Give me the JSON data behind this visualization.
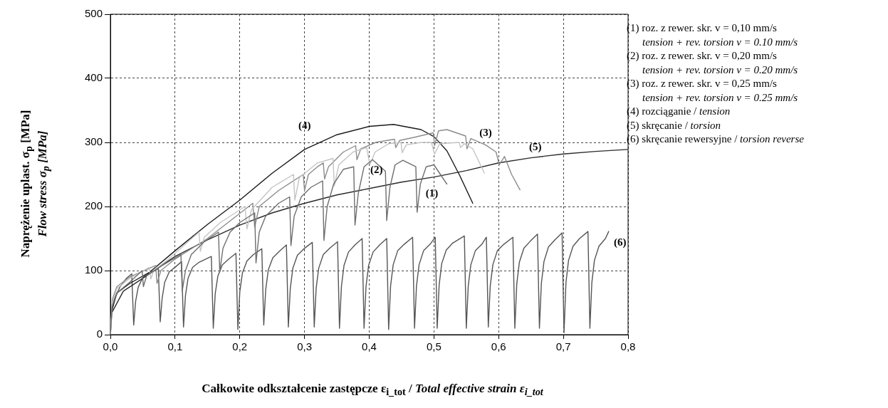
{
  "chart_data": {
    "type": "line",
    "xlabel": "Całkowite odkształcenie zastępcze ε$_{i_tot}$ / Total effective strain ε$_{i_tot}$",
    "ylabel": "Naprężenie uplast. σ$_{p}$ [MPa]\nFlow stress σ$_{p}$ [MPa]",
    "xlim": [
      0,
      0.8
    ],
    "xticks": [
      {
        "value": 0,
        "label": "0,0"
      },
      {
        "value": 0.1,
        "label": "0,1"
      },
      {
        "value": 0.2,
        "label": "0,2"
      },
      {
        "value": 0.3,
        "label": "0,3"
      },
      {
        "value": 0.4,
        "label": "0,4"
      },
      {
        "value": 0.5,
        "label": "0,5"
      },
      {
        "value": 0.6,
        "label": "0,6"
      },
      {
        "value": 0.7,
        "label": "0,7"
      },
      {
        "value": 0.8,
        "label": "0,8"
      }
    ],
    "ylim": [
      0,
      500
    ],
    "yticks": [
      0,
      100,
      200,
      300,
      400,
      500
    ],
    "grid": true,
    "marker": "none",
    "line_style": "solid",
    "series": [
      {
        "name": "(1)",
        "color": "#6e6e6e",
        "x": [
          0,
          0.003,
          0.01,
          0.03,
          0.049,
          0.051,
          0.056,
          0.08,
          0.109,
          0.111,
          0.116,
          0.125,
          0.145,
          0.167,
          0.169,
          0.174,
          0.185,
          0.2,
          0.223,
          0.225,
          0.23,
          0.24,
          0.26,
          0.277,
          0.279,
          0.284,
          0.295,
          0.31,
          0.328,
          0.33,
          0.335,
          0.345,
          0.36,
          0.376,
          0.378,
          0.383,
          0.392,
          0.405,
          0.425,
          0.427,
          0.432,
          0.44,
          0.452,
          0.472,
          0.474,
          0.479,
          0.488,
          0.5,
          0.51,
          0.52
        ],
        "values": [
          0,
          45,
          65,
          82,
          100,
          75,
          92,
          108,
          125,
          68,
          100,
          125,
          145,
          160,
          98,
          135,
          160,
          175,
          190,
          112,
          160,
          185,
          205,
          215,
          139,
          185,
          215,
          230,
          240,
          147,
          200,
          235,
          258,
          262,
          171,
          220,
          262,
          273,
          255,
          178,
          230,
          265,
          272,
          262,
          191,
          235,
          262,
          265,
          250,
          235
        ]
      },
      {
        "name": "(2)",
        "color": "#c4c4c4",
        "x": [
          0,
          0.003,
          0.01,
          0.03,
          0.06,
          0.0625,
          0.067,
          0.09,
          0.12,
          0.137,
          0.139,
          0.145,
          0.17,
          0.208,
          0.211,
          0.218,
          0.25,
          0.283,
          0.285,
          0.292,
          0.32,
          0.344,
          0.346,
          0.353,
          0.375,
          0.396,
          0.401,
          0.409,
          0.43,
          0.449,
          0.451,
          0.457,
          0.48,
          0.496,
          0.501,
          0.509,
          0.539,
          0.541,
          0.547,
          0.56,
          0.578
        ],
        "values": [
          0,
          50,
          72,
          88,
          105,
          87,
          100,
          118,
          145,
          160,
          130,
          152,
          175,
          200,
          165,
          195,
          230,
          250,
          210,
          245,
          268,
          275,
          232,
          265,
          285,
          292,
          265,
          285,
          298,
          300,
          284,
          296,
          300,
          300,
          282,
          298,
          300,
          292,
          298,
          290,
          252
        ]
      },
      {
        "name": "(3)",
        "color": "#8c8c8c",
        "x": [
          0,
          0.003,
          0.01,
          0.03,
          0.07,
          0.072,
          0.078,
          0.1,
          0.15,
          0.22,
          0.223,
          0.23,
          0.26,
          0.298,
          0.3,
          0.306,
          0.32,
          0.329,
          0.331,
          0.337,
          0.36,
          0.379,
          0.381,
          0.387,
          0.41,
          0.439,
          0.441,
          0.447,
          0.47,
          0.499,
          0.501,
          0.507,
          0.52,
          0.549,
          0.551,
          0.557,
          0.58,
          0.596,
          0.601,
          0.609,
          0.62,
          0.633
        ],
        "values": [
          0,
          55,
          75,
          90,
          108,
          80,
          100,
          118,
          150,
          205,
          168,
          200,
          225,
          250,
          225,
          250,
          262,
          268,
          243,
          262,
          285,
          295,
          273,
          290,
          300,
          305,
          292,
          303,
          308,
          315,
          295,
          318,
          320,
          310,
          290,
          306,
          296,
          285,
          265,
          278,
          250,
          226
        ]
      },
      {
        "name": "(4)",
        "color": "#1a1a1a",
        "x": [
          0,
          0.01,
          0.03,
          0.06,
          0.1,
          0.15,
          0.2,
          0.25,
          0.3,
          0.35,
          0.4,
          0.4375,
          0.48,
          0.5,
          0.52,
          0.54,
          0.56
        ],
        "values": [
          30,
          65,
          80,
          97,
          131,
          172,
          210,
          252,
          289,
          312,
          325,
          328,
          320,
          309,
          287,
          248,
          205
        ]
      },
      {
        "name": "(5)",
        "color": "#2a2a2a",
        "x": [
          0,
          0.02,
          0.05,
          0.1,
          0.15,
          0.2,
          0.25,
          0.3,
          0.35,
          0.4,
          0.45,
          0.5,
          0.55,
          0.6,
          0.65,
          0.7,
          0.75,
          0.8
        ],
        "values": [
          30,
          68,
          88,
          122,
          148,
          171,
          190,
          205,
          218,
          228,
          238,
          246,
          256,
          268,
          276,
          282,
          286,
          289
        ]
      },
      {
        "name": "(6)",
        "color": "#555555",
        "x": [
          0,
          0.002,
          0.006,
          0.015,
          0.025,
          0.033,
          0.036,
          0.039,
          0.043,
          0.05,
          0.06,
          0.074,
          0.077,
          0.08,
          0.084,
          0.091,
          0.101,
          0.11,
          0.113,
          0.116,
          0.12,
          0.127,
          0.137,
          0.156,
          0.159,
          0.162,
          0.166,
          0.173,
          0.183,
          0.194,
          0.197,
          0.2,
          0.204,
          0.211,
          0.221,
          0.234,
          0.237,
          0.24,
          0.244,
          0.251,
          0.261,
          0.272,
          0.275,
          0.278,
          0.282,
          0.289,
          0.299,
          0.312,
          0.315,
          0.318,
          0.322,
          0.329,
          0.339,
          0.351,
          0.354,
          0.357,
          0.361,
          0.368,
          0.378,
          0.389,
          0.392,
          0.395,
          0.399,
          0.406,
          0.416,
          0.427,
          0.43,
          0.433,
          0.437,
          0.444,
          0.454,
          0.467,
          0.47,
          0.473,
          0.477,
          0.484,
          0.494,
          0.502,
          0.505,
          0.508,
          0.512,
          0.519,
          0.529,
          0.547,
          0.55,
          0.553,
          0.557,
          0.564,
          0.574,
          0.581,
          0.584,
          0.587,
          0.591,
          0.598,
          0.608,
          0.622,
          0.625,
          0.628,
          0.632,
          0.639,
          0.649,
          0.66,
          0.663,
          0.666,
          0.67,
          0.677,
          0.687,
          0.698,
          0.701,
          0.704,
          0.708,
          0.715,
          0.725,
          0.738,
          0.741,
          0.744,
          0.748,
          0.755,
          0.765,
          0.77
        ],
        "values": [
          0,
          35,
          55,
          75,
          88,
          95,
          15,
          52,
          74,
          89,
          96,
          103,
          20,
          57,
          82,
          98,
          106,
          114,
          12,
          61,
          88,
          105,
          113,
          122,
          10,
          64,
          91,
          109,
          118,
          127,
          8,
          67,
          96,
          115,
          125,
          134,
          15,
          70,
          101,
          120,
          130,
          140,
          12,
          72,
          104,
          124,
          134,
          144,
          12,
          73,
          104,
          125,
          135,
          145,
          10,
          75,
          108,
          129,
          140,
          150,
          10,
          75,
          108,
          129,
          140,
          150,
          8,
          76,
          109,
          131,
          141,
          152,
          10,
          76,
          109,
          131,
          141,
          152,
          10,
          77,
          111,
          132,
          143,
          154,
          10,
          76,
          109,
          131,
          141,
          152,
          12,
          76,
          109,
          131,
          141,
          152,
          10,
          79,
          113,
          135,
          146,
          157,
          10,
          80,
          114,
          137,
          148,
          159,
          3,
          81,
          116,
          138,
          150,
          161,
          10,
          81,
          116,
          138,
          150,
          161
        ]
      }
    ],
    "annotations": [
      "(1) roz. z rewer. skr. v = 0,10 mm/s\ntension + rev. torsion v = 0.10 mm/s",
      "(2) roz. z rewer. skr. v = 0,20 mm/s\ntension + rev. torsion v = 0.20 mm/s",
      "(3) roz. z rewer. skr. v = 0,25 mm/s\ntension + rev. torsion v = 0.25 mm/s",
      "(4) rozciąganie / tension",
      "(5) skręcanie / torsion",
      "(6) skręcanie rewersyjne / torsion reverse"
    ]
  }
}
